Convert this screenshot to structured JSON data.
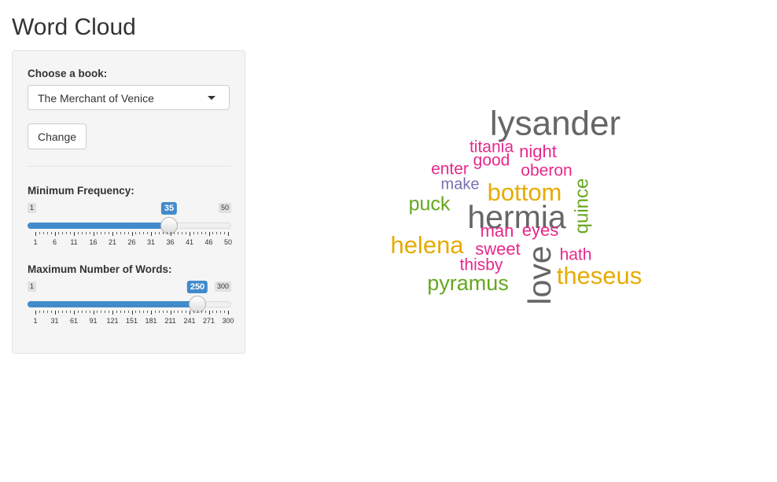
{
  "page": {
    "title": "Word Cloud"
  },
  "sidebar": {
    "book_label": "Choose a book:",
    "book_selected": "The Merchant of Venice",
    "change_button": "Change",
    "min_freq": {
      "label": "Minimum Frequency:",
      "min": 1,
      "max": 50,
      "value": 35,
      "min_text": "1",
      "max_text": "50",
      "value_text": "35",
      "tick_labels": [
        "1",
        "6",
        "11",
        "16",
        "21",
        "26",
        "31",
        "36",
        "41",
        "46",
        "50"
      ]
    },
    "max_words": {
      "label": "Maximum Number of Words:",
      "min": 1,
      "max": 300,
      "value": 250,
      "min_text": "1",
      "max_text": "300",
      "value_text": "250",
      "tick_labels": [
        "1",
        "31",
        "61",
        "91",
        "121",
        "151",
        "181",
        "211",
        "241",
        "271",
        "300"
      ]
    }
  },
  "colors": {
    "accent": "#428bca",
    "gray": "#666666",
    "pink": "#e7298a",
    "gold": "#e6ab02",
    "green": "#66a61e",
    "purple": "#7570b3"
  },
  "wordcloud": {
    "words": [
      {
        "text": "lysander",
        "color": "#666666"
      },
      {
        "text": "titania",
        "color": "#e7298a"
      },
      {
        "text": "night",
        "color": "#e7298a"
      },
      {
        "text": "good",
        "color": "#e7298a"
      },
      {
        "text": "enter",
        "color": "#e7298a"
      },
      {
        "text": "oberon",
        "color": "#e7298a"
      },
      {
        "text": "make",
        "color": "#7570b3"
      },
      {
        "text": "bottom",
        "color": "#e6ab02"
      },
      {
        "text": "puck",
        "color": "#66a61e"
      },
      {
        "text": "hermia",
        "color": "#666666"
      },
      {
        "text": "quince",
        "color": "#66a61e"
      },
      {
        "text": "man",
        "color": "#e7298a"
      },
      {
        "text": "eyes",
        "color": "#e7298a"
      },
      {
        "text": "helena",
        "color": "#e6ab02"
      },
      {
        "text": "sweet",
        "color": "#e7298a"
      },
      {
        "text": "love",
        "color": "#666666"
      },
      {
        "text": "hath",
        "color": "#e7298a"
      },
      {
        "text": "thisby",
        "color": "#e7298a"
      },
      {
        "text": "theseus",
        "color": "#e6ab02"
      },
      {
        "text": "pyramus",
        "color": "#66a61e"
      }
    ]
  }
}
